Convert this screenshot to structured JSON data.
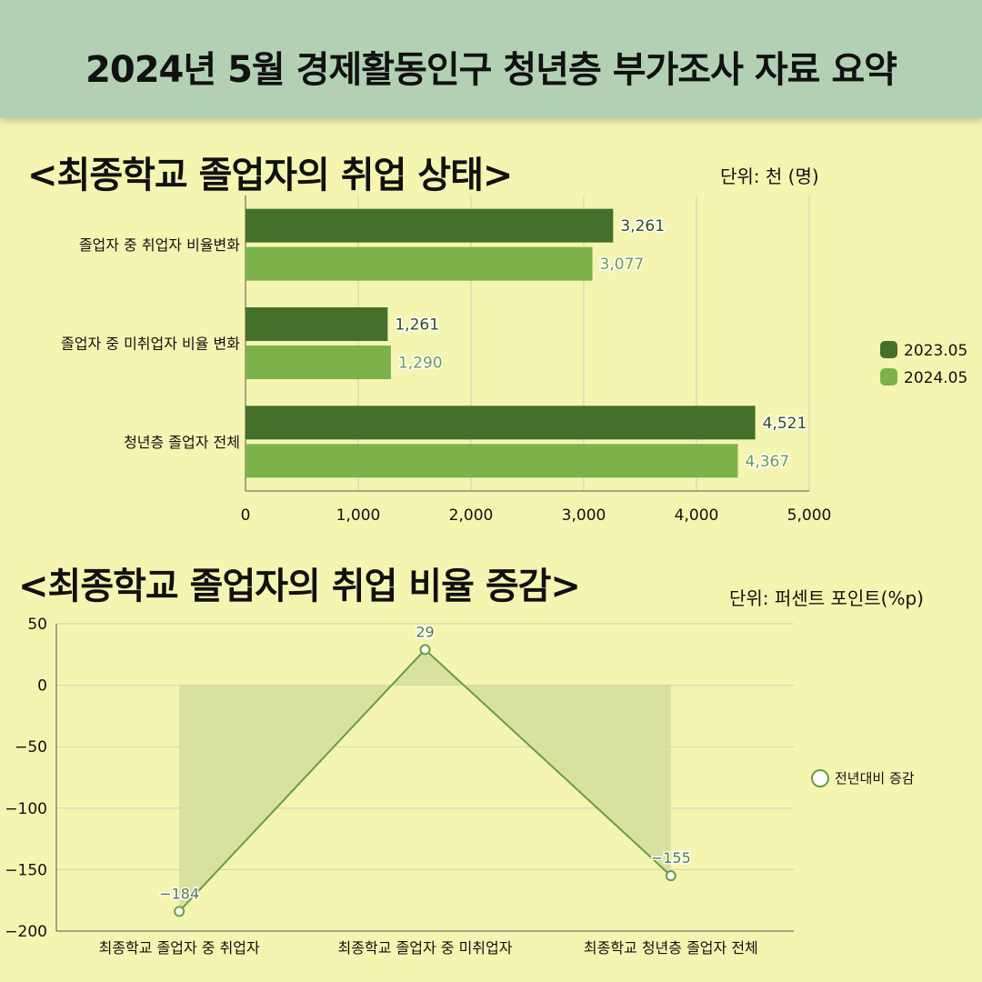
{
  "header": {
    "title": "2024년 5월 경제활동인구 청년층 부가조사 자료 요약"
  },
  "charts": [
    {
      "section_title": "<최종학교 졸업자의 취업 상태>",
      "unit": "단위: 천 (명)"
    },
    {
      "section_title": "<최종학교 졸업자의 취업 비율 증감>",
      "unit": "단위: 퍼센트 포인트(%p)"
    }
  ],
  "colors": {
    "dark": "#44702b",
    "light": "#7db24a",
    "area": "#d5df9a",
    "line": "#6a9c45"
  },
  "chart_data": [
    {
      "type": "bar",
      "orientation": "horizontal",
      "categories": [
        "졸업자 중 취업자 비율변화",
        "졸업자 중 미취업자 비율 변화",
        "청년층 졸업자 전체"
      ],
      "series": [
        {
          "name": "2023.05",
          "values": [
            3261,
            1261,
            4521
          ],
          "labels": [
            "3,261",
            "1,261",
            "4,521"
          ]
        },
        {
          "name": "2024.05",
          "values": [
            3077,
            1290,
            4367
          ],
          "labels": [
            "3,077",
            "1,290",
            "4,367"
          ]
        }
      ],
      "xlim": [
        0,
        5000
      ],
      "xticks": [
        0,
        1000,
        2000,
        3000,
        4000,
        5000
      ],
      "xtick_labels": [
        "0",
        "1,000",
        "2,000",
        "3,000",
        "4,000",
        "5,000"
      ],
      "grid": true,
      "legend": "right"
    },
    {
      "type": "line",
      "categories": [
        "최종학교 졸업자 중 취업자",
        "최종학교 졸업자 중 미취업자",
        "최종학교 청년층 졸업자 전체"
      ],
      "series": [
        {
          "name": "전년대비 증감",
          "values": [
            -184,
            29,
            -155
          ],
          "labels": [
            "−184",
            "29",
            "−155"
          ]
        }
      ],
      "ylim": [
        -200,
        50
      ],
      "yticks": [
        50,
        0,
        -50,
        -100,
        -150,
        -200
      ],
      "ytick_labels": [
        "50",
        "0",
        "−50",
        "−100",
        "−150",
        "−200"
      ],
      "grid": true,
      "area_fill": true,
      "legend": "right"
    }
  ]
}
